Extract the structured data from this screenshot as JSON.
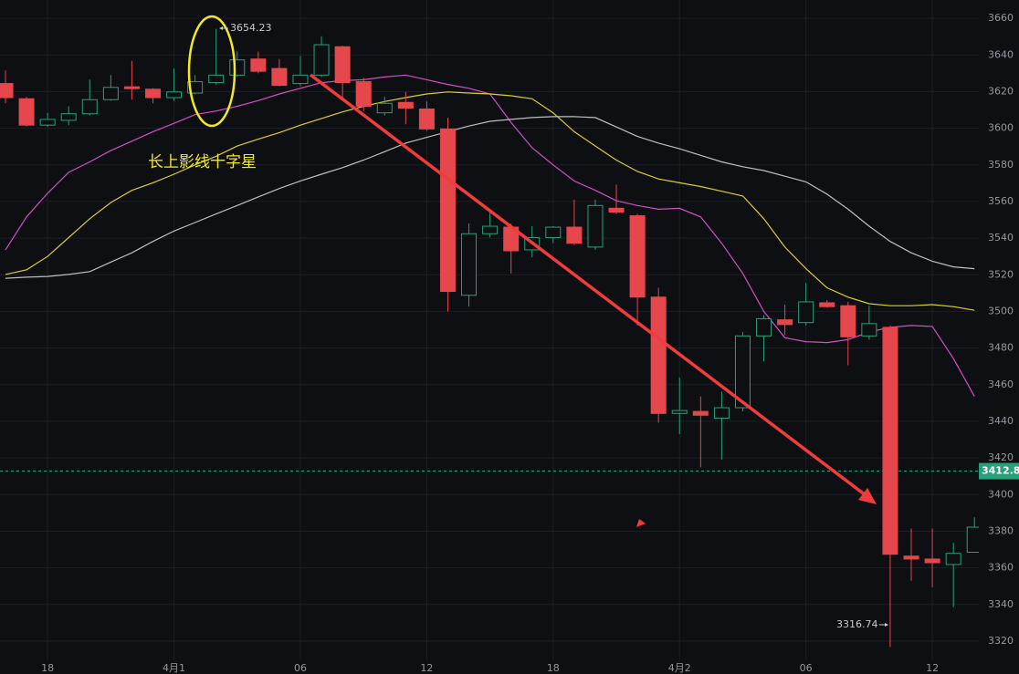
{
  "chart_data": {
    "type": "candlestick",
    "categories": [
      null,
      null,
      "18",
      null,
      null,
      null,
      null,
      null,
      "4月1",
      null,
      null,
      null,
      null,
      null,
      "06",
      null,
      null,
      null,
      null,
      null,
      "12",
      null,
      null,
      null,
      null,
      null,
      "18",
      null,
      null,
      null,
      null,
      null,
      "4月2",
      null,
      null,
      null,
      null,
      null,
      "06",
      null,
      null,
      null,
      null,
      null,
      "12",
      null,
      null
    ],
    "open": [
      3624.4,
      3616.1,
      3601.7,
      3604.3,
      3607.9,
      3615.6,
      3622.6,
      3621.3,
      3616.7,
      3619.2,
      3624.9,
      3629,
      3637.8,
      3632.6,
      3624.4,
      3629,
      3644.5,
      3625.4,
      3608.4,
      3614.1,
      3610.5,
      3599.6,
      3508.8,
      3542.4,
      3546,
      3533.6,
      3540.3,
      3546,
      3535.1,
      3556.3,
      3552.2,
      3507.8,
      3444.3,
      3445.4,
      3441.7,
      3447.4,
      3486.6,
      3495.4,
      3493.9,
      3504.7,
      3503.1,
      3486.6,
      3491.3,
      3366.4,
      3364.8,
      3361.8,
      3368.5
    ],
    "high": [
      3631.6,
      3617,
      3608.4,
      3612,
      3626.5,
      3629,
      3636.8,
      3621.8,
      3632.6,
      3629,
      3654.23,
      3641.9,
      3641.9,
      3637.8,
      3639.4,
      3650.2,
      3645,
      3627.5,
      3617.2,
      3619.8,
      3614.6,
      3605.8,
      3548,
      3554.2,
      3548,
      3546.5,
      3546.5,
      3561,
      3561,
      3569.2,
      3553.2,
      3512.9,
      3463.9,
      3453.6,
      3456.2,
      3488.7,
      3498,
      3503.7,
      3515.5,
      3506.2,
      3505.2,
      3503.1,
      3492.3,
      3381.4,
      3381.4,
      3373.6,
      3387.6
    ],
    "low": [
      3613.6,
      3601,
      3600.7,
      3601.7,
      3607,
      3615,
      3615.6,
      3613.6,
      3615,
      3618.7,
      3623.9,
      3628,
      3630,
      3622.9,
      3622.9,
      3628,
      3616.1,
      3609.4,
      3606.9,
      3602.2,
      3598.6,
      3500,
      3502.6,
      3540.3,
      3520.7,
      3529.5,
      3537.2,
      3536.2,
      3533.6,
      3553.2,
      3492.3,
      3439.2,
      3433,
      3414.9,
      3419,
      3445.4,
      3472.7,
      3487,
      3492.3,
      3502.1,
      3470.6,
      3484.6,
      3316.74,
      3353,
      3349.4,
      3338.5,
      3369
    ],
    "close": [
      3616.7,
      3601.7,
      3604.8,
      3607.9,
      3615.6,
      3622.3,
      3621.8,
      3616.7,
      3619.8,
      3625.4,
      3629,
      3637.3,
      3631.1,
      3623.4,
      3629,
      3645.6,
      3624.9,
      3612,
      3613.6,
      3611,
      3599.6,
      3510.9,
      3542.4,
      3546.5,
      3533.1,
      3540.3,
      3546,
      3537.2,
      3557.8,
      3554.2,
      3507.8,
      3444.3,
      3445.9,
      3443.3,
      3447.4,
      3486.6,
      3496,
      3492.8,
      3505.2,
      3502.6,
      3486.1,
      3493.3,
      3367.4,
      3364.8,
      3362.8,
      3367.9,
      3382.2
    ],
    "up_color": "#26a17b",
    "down_color": "#e5474d",
    "series": [
      {
        "color": "#d24fc4",
        "values": [
          3533.6,
          3551.6,
          3564.5,
          3575.9,
          3581.6,
          3587.8,
          3592.9,
          3598.1,
          3602.7,
          3607.4,
          3609.4,
          3612,
          3615.1,
          3618.7,
          3621.8,
          3624.9,
          3626,
          3626.5,
          3628,
          3629,
          3626.5,
          3623.9,
          3621.8,
          3618.7,
          3603.2,
          3589.3,
          3580,
          3571.2,
          3566.1,
          3560.4,
          3557.8,
          3555.8,
          3556.3,
          3551.6,
          3537.2,
          3520.7,
          3500,
          3485.6,
          3483.5,
          3483,
          3484.6,
          3488.7,
          3491.3,
          3492.3,
          3491.8,
          3474.2,
          3453.6
        ]
      },
      {
        "color": "#d9d02a",
        "values": [
          3520.2,
          3522.7,
          3530,
          3540.3,
          3550.6,
          3559.4,
          3566.1,
          3570.2,
          3574.9,
          3580,
          3584.7,
          3590.3,
          3594,
          3597.6,
          3601.7,
          3605.3,
          3608.9,
          3612,
          3614.6,
          3616.7,
          3618.7,
          3619.8,
          3619.2,
          3618.7,
          3617.7,
          3616.1,
          3608.4,
          3598.1,
          3590.3,
          3582.6,
          3576.4,
          3572.3,
          3570.2,
          3568.2,
          3565.6,
          3563,
          3550.6,
          3535.1,
          3523.3,
          3512.9,
          3507.8,
          3504.2,
          3503.1,
          3503.1,
          3503.7,
          3502.6,
          3500.6
        ]
      },
      {
        "color": "#bfbfbf",
        "values": [
          3518.1,
          3518.7,
          3519.1,
          3520.2,
          3521.7,
          3526.9,
          3532,
          3538.2,
          3543.9,
          3548.5,
          3553.2,
          3557.8,
          3562.5,
          3567.1,
          3571.2,
          3574.9,
          3578.5,
          3582.6,
          3587.2,
          3591.9,
          3595,
          3598.1,
          3601.2,
          3603.8,
          3604.8,
          3605.8,
          3606.3,
          3606.3,
          3605.8,
          3600.7,
          3595.5,
          3591.9,
          3588.8,
          3585.2,
          3581.6,
          3579,
          3576.9,
          3573.8,
          3570.7,
          3564,
          3555.8,
          3546.5,
          3538.2,
          3532,
          3527.4,
          3524.3,
          3523.3
        ]
      }
    ],
    "ylim": [
      3311.5,
      3670
    ],
    "yticks": [
      3320,
      3340,
      3360,
      3380,
      3400,
      3420,
      3440,
      3460,
      3480,
      3500,
      3520,
      3540,
      3560,
      3580,
      3600,
      3620,
      3640,
      3660
    ],
    "grid": true,
    "current_price": 3412.8,
    "current_price_color": "#26a17b",
    "annotation": "长上影线十字星"
  }
}
